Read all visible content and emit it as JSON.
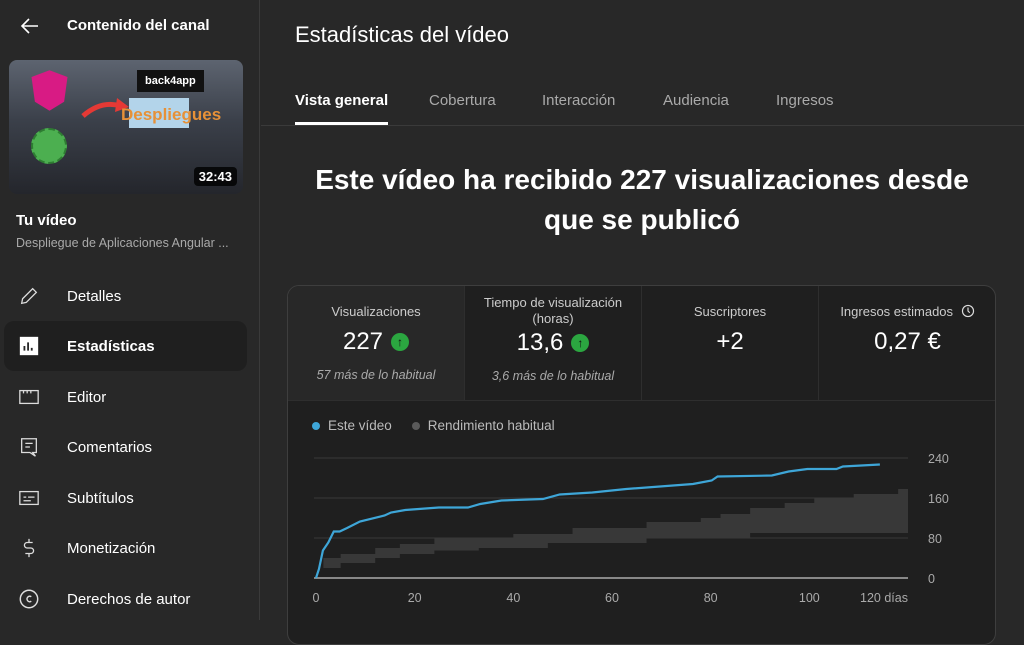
{
  "sidebar": {
    "back_label": "Contenido del canal",
    "thumbnail": {
      "duration": "32:43",
      "overlay_brand": "back4app",
      "overlay_title": "Despliegues"
    },
    "your_video_label": "Tu vídeo",
    "video_title": "Despliegue de Aplicaciones Angular ...",
    "items": [
      {
        "label": "Detalles",
        "icon": "pencil-icon"
      },
      {
        "label": "Estadísticas",
        "icon": "analytics-icon",
        "active": true
      },
      {
        "label": "Editor",
        "icon": "clapper-icon"
      },
      {
        "label": "Comentarios",
        "icon": "comment-icon"
      },
      {
        "label": "Subtítulos",
        "icon": "subtitles-icon"
      },
      {
        "label": "Monetización",
        "icon": "dollar-icon"
      },
      {
        "label": "Derechos de autor",
        "icon": "copyright-icon"
      }
    ]
  },
  "header": {
    "title": "Estadísticas del vídeo",
    "tabs": [
      {
        "label": "Vista general",
        "active": true
      },
      {
        "label": "Cobertura"
      },
      {
        "label": "Interacción"
      },
      {
        "label": "Audiencia"
      },
      {
        "label": "Ingresos"
      }
    ]
  },
  "headline": "Este vídeo ha recibido 227 visualizaciones desde que se publicó",
  "metrics": [
    {
      "label": "Visualizaciones",
      "value": "227",
      "trend": "up",
      "note": "57 más de lo habitual"
    },
    {
      "label": "Tiempo de visualización (horas)",
      "value": "13,6",
      "trend": "up",
      "note": "3,6 más de lo habitual"
    },
    {
      "label": "Suscriptores",
      "value": "+2"
    },
    {
      "label": "Ingresos estimados",
      "value": "0,27 €",
      "icon": "clock-icon"
    }
  ],
  "colors": {
    "this_video": "#3ea6d8",
    "typical": "#5a5a5a",
    "up_badge": "#2ba640"
  },
  "chart_data": {
    "type": "line",
    "legend": [
      "Este vídeo",
      "Rendimiento habitual"
    ],
    "legend_placement": "top-left",
    "xlim": [
      0,
      120
    ],
    "ylim": [
      0,
      240
    ],
    "x_ticks": [
      "0",
      "20",
      "40",
      "60",
      "80",
      "100",
      "120 días"
    ],
    "y_ticks": [
      "240",
      "160",
      "80",
      "0"
    ],
    "grid": true,
    "series": [
      {
        "name": "Este vídeo",
        "points": [
          [
            0,
            0
          ],
          [
            0.6,
            18
          ],
          [
            1.4,
            55
          ],
          [
            2.5,
            71
          ],
          [
            3.6,
            93
          ],
          [
            4.8,
            93
          ],
          [
            6.3,
            100
          ],
          [
            8.9,
            113
          ],
          [
            13.9,
            125
          ],
          [
            15.2,
            131
          ],
          [
            18.1,
            136
          ],
          [
            24.9,
            141
          ],
          [
            30.8,
            141
          ],
          [
            33.3,
            148
          ],
          [
            37.6,
            155
          ],
          [
            46,
            158
          ],
          [
            49.4,
            167
          ],
          [
            56,
            171
          ],
          [
            62.9,
            178
          ],
          [
            76.4,
            188
          ],
          [
            80.2,
            195
          ],
          [
            81.4,
            203
          ],
          [
            92.4,
            205
          ],
          [
            95.8,
            213
          ],
          [
            99.6,
            218
          ],
          [
            105.5,
            218
          ],
          [
            106.8,
            223
          ],
          [
            114.3,
            227
          ]
        ]
      }
    ],
    "typical_range": {
      "name": "Rendimiento habitual",
      "upper": [
        [
          1.5,
          40
        ],
        [
          5,
          48
        ],
        [
          12,
          60
        ],
        [
          17,
          68
        ],
        [
          24,
          80
        ],
        [
          40,
          88
        ],
        [
          52,
          100
        ],
        [
          67,
          112
        ],
        [
          78,
          120
        ],
        [
          82,
          128
        ],
        [
          88,
          140
        ],
        [
          95,
          150
        ],
        [
          101,
          160
        ],
        [
          109,
          168
        ],
        [
          118,
          178
        ],
        [
          120,
          178
        ]
      ],
      "lower": [
        [
          1.5,
          20
        ],
        [
          5,
          30
        ],
        [
          12,
          40
        ],
        [
          17,
          48
        ],
        [
          24,
          55
        ],
        [
          33,
          60
        ],
        [
          47,
          70
        ],
        [
          67,
          80
        ],
        [
          88,
          90
        ],
        [
          120,
          90
        ]
      ]
    }
  }
}
